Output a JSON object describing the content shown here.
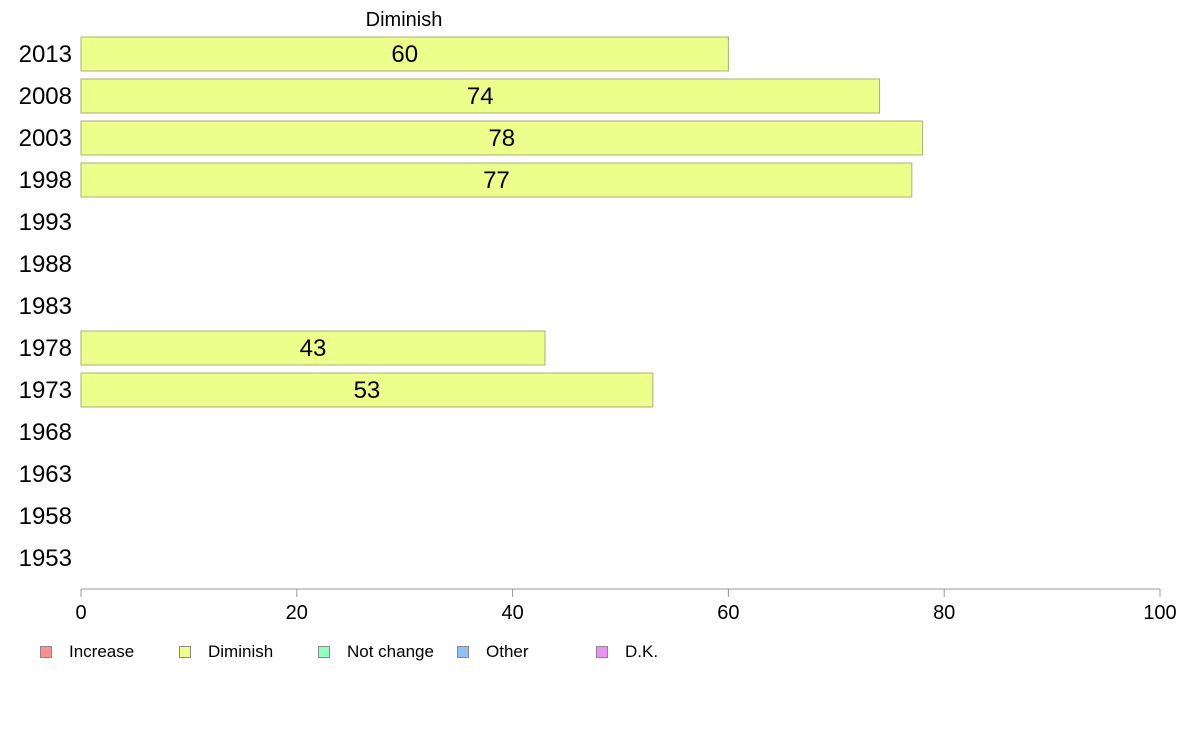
{
  "chart_data": {
    "type": "bar",
    "orientation": "horizontal",
    "title": "Diminish",
    "categories": [
      "2013",
      "2008",
      "2003",
      "1998",
      "1993",
      "1988",
      "1983",
      "1978",
      "1973",
      "1968",
      "1963",
      "1958",
      "1953"
    ],
    "series": [
      {
        "name": "Diminish",
        "color": "#ecff8a",
        "values": [
          60,
          74,
          78,
          77,
          null,
          null,
          null,
          43,
          53,
          null,
          null,
          null,
          null
        ]
      }
    ],
    "xlim": [
      0,
      100
    ],
    "xticks": [
      0,
      20,
      40,
      60,
      80,
      100
    ],
    "xlabel": "",
    "ylabel": "",
    "grid": false,
    "legend_position": "bottom"
  },
  "legend": {
    "items": [
      {
        "label": "Increase",
        "color": "#ff8f8f"
      },
      {
        "label": "Diminish",
        "color": "#ecff8a"
      },
      {
        "label": "Not change",
        "color": "#8fffbf"
      },
      {
        "label": "Other",
        "color": "#8fbfff"
      },
      {
        "label": "D.K.",
        "color": "#f08ff5"
      }
    ]
  }
}
